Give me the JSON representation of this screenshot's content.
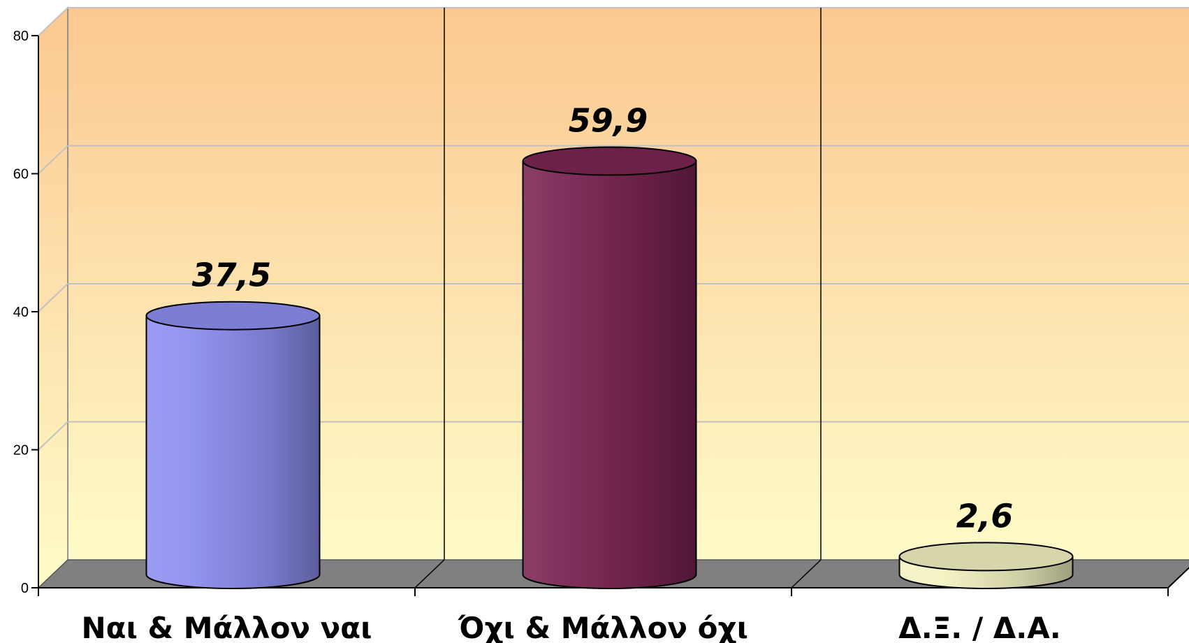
{
  "chart_data": {
    "type": "bar",
    "style": "3d-cylinder",
    "categories": [
      "Ναι & Μάλλον ναι",
      "Όχι & Μάλλον όχι",
      "Δ.Ξ. / Δ.Α."
    ],
    "values": [
      37.5,
      59.9,
      2.6
    ],
    "data_labels": [
      "37,5",
      "59,9",
      "2,6"
    ],
    "colors": [
      "#8e8ff0",
      "#7a2552",
      "#f4f3c2"
    ],
    "background_gradient": [
      "#fcc891",
      "#fefbc8"
    ],
    "floor_color": "#808080",
    "ylim": [
      0,
      80
    ],
    "yticks": [
      0,
      20,
      40,
      60,
      80
    ],
    "ytick_labels": [
      "0",
      "20",
      "40",
      "60",
      "80"
    ],
    "grid": true,
    "title": "",
    "xlabel": "",
    "ylabel": ""
  }
}
